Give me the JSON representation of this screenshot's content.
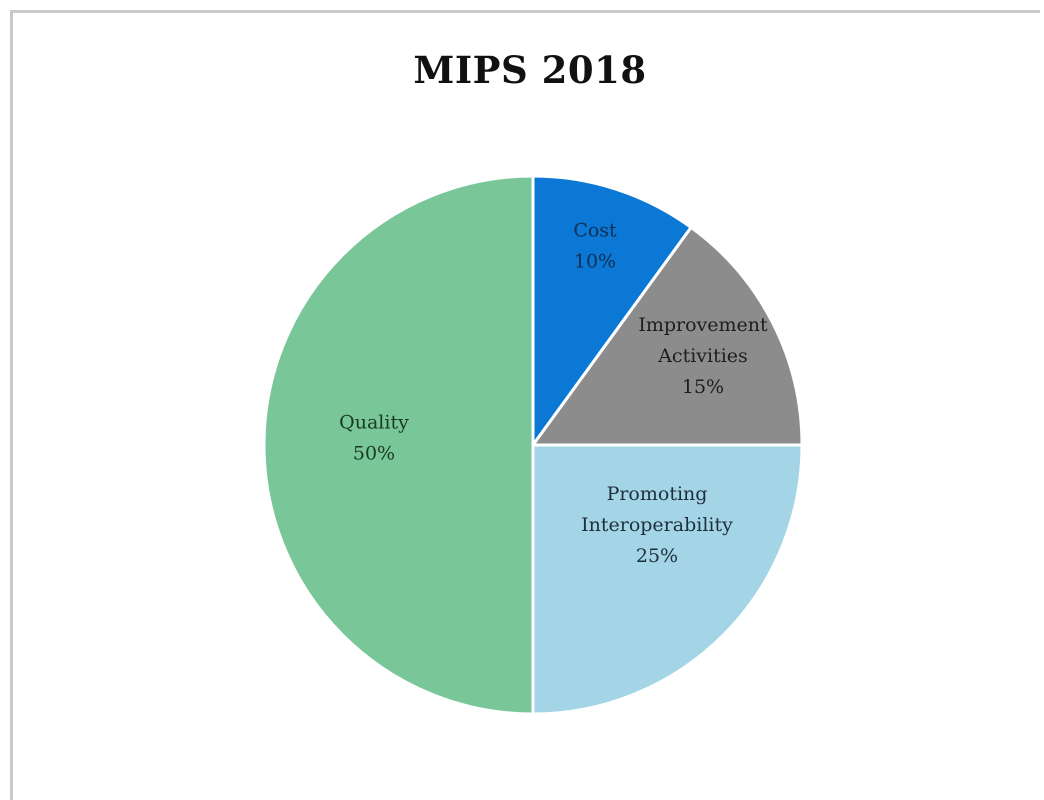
{
  "chart_data": {
    "type": "pie",
    "title": "MIPS 2018",
    "slices": [
      {
        "label": "Cost",
        "value": 10,
        "value_label": "10%",
        "color": "#0a78d4",
        "label_color": "#0f2f55",
        "label_lines": [
          "Cost",
          "10%"
        ]
      },
      {
        "label": "Improvement Activities",
        "value": 15,
        "value_label": "15%",
        "color": "#8c8c8c",
        "label_color": "#1e1e1e",
        "label_lines": [
          "Improvement",
          "Activities",
          "15%"
        ]
      },
      {
        "label": "Promoting Interoperability",
        "value": 25,
        "value_label": "25%",
        "color": "#a3d5e6",
        "label_color": "#1e2f3c",
        "label_lines": [
          "Promoting",
          "Interoperability",
          "25%"
        ]
      },
      {
        "label": "Quality",
        "value": 50,
        "value_label": "50%",
        "color": "#79c698",
        "label_color": "#1b3a26",
        "label_lines": [
          "Quality",
          "50%"
        ]
      }
    ],
    "start_angle_deg": 0,
    "direction": "clockwise",
    "legend": "none"
  }
}
